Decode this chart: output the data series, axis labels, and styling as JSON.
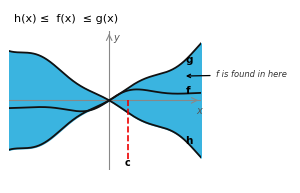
{
  "title": "h(x) ≤  f(x)  ≤ g(x)",
  "title_fontsize": 8,
  "background_color": "#ffffff",
  "fill_color": "#3ab4e0",
  "line_color": "#111111",
  "dashed_color": "#ee0000",
  "label_g": "g",
  "label_f": "f",
  "label_h": "h",
  "label_c": "c",
  "label_x": "x",
  "label_y": "y",
  "annotation": "f is found in here",
  "xlim": [
    -2.4,
    2.2
  ],
  "ylim": [
    -1.6,
    1.6
  ],
  "dashed_x": 0.45,
  "dashed_y_top": 0.0,
  "dashed_y_bot": -1.35
}
